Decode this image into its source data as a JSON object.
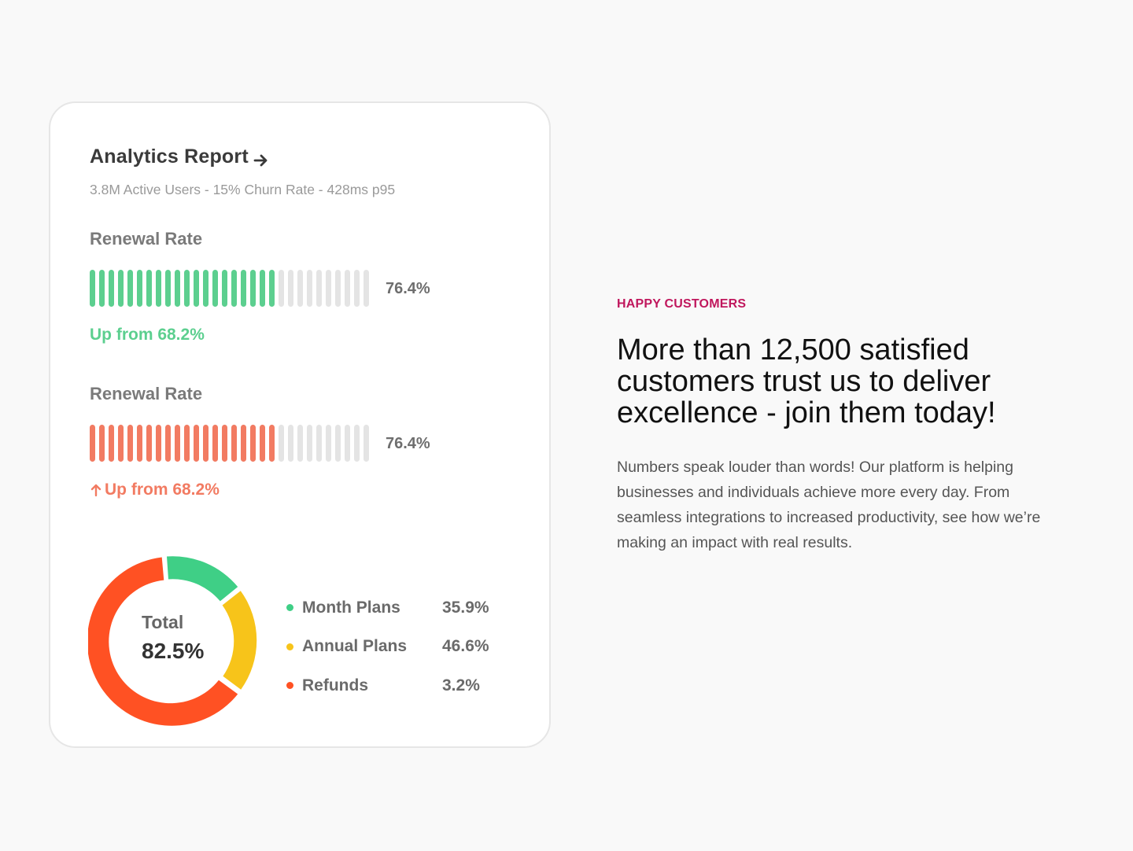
{
  "colors": {
    "green": "#5ccf8f",
    "coral": "#f27b62",
    "inactive_bar": "#e4e4e4",
    "donut_green": "#3fcf86",
    "donut_yellow": "#f7c41a",
    "donut_red": "#ff5123",
    "eyebrow": "#c0175d"
  },
  "card": {
    "title": "Analytics Report",
    "title_icon": "arrow-right-icon",
    "subtitle": "3.8M Active Users - 15% Churn Rate - 428ms p95",
    "metrics": [
      {
        "label": "Renewal Rate",
        "value": "76.4%",
        "change": "Up from 68.2%",
        "filled_bars": 20,
        "total_bars": 30,
        "color": "#5ccf8f",
        "icon": ""
      },
      {
        "label": "Renewal Rate",
        "value": "76.4%",
        "change": "Up from 68.2%",
        "filled_bars": 20,
        "total_bars": 30,
        "color": "#f27b62",
        "icon": "arrow-up-icon"
      }
    ],
    "donut": {
      "total_label": "Total",
      "total_value": "82.5%"
    },
    "legend": [
      {
        "name": "Month Plans",
        "value": "35.9%",
        "color": "#3fcf86"
      },
      {
        "name": "Annual Plans",
        "value": "46.6%",
        "color": "#f7c41a"
      },
      {
        "name": "Refunds",
        "value": "3.2%",
        "color": "#ff5123"
      }
    ]
  },
  "section": {
    "eyebrow": "HAPPY CUSTOMERS",
    "headline": "More than 12,500 satisfied customers trust us to deliver excellence - join them today!",
    "body": "Numbers speak louder than words! Our platform is helping businesses and individuals achieve more every day. From seamless integrations to increased productivity, see how we’re making an impact with real results."
  }
}
